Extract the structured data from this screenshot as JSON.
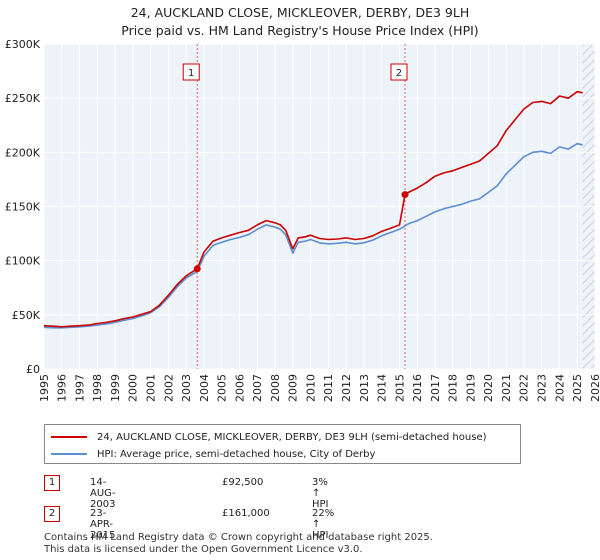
{
  "chart_data": {
    "type": "line",
    "title": "24, AUCKLAND CLOSE, MICKLEOVER, DERBY, DE3 9LH",
    "subtitle": "Price paid vs. HM Land Registry's House Price Index (HPI)",
    "xlim": [
      1995,
      2026
    ],
    "ylim": [
      0,
      300000
    ],
    "x_ticks": [
      1995,
      1996,
      1997,
      1998,
      1999,
      2000,
      2001,
      2002,
      2003,
      2004,
      2005,
      2006,
      2007,
      2008,
      2009,
      2010,
      2011,
      2012,
      2013,
      2014,
      2015,
      2016,
      2017,
      2018,
      2019,
      2020,
      2021,
      2022,
      2023,
      2024,
      2025,
      2026
    ],
    "x_tick_labels": [
      "1995",
      "1996",
      "1997",
      "1998",
      "1999",
      "2000",
      "2001",
      "2002",
      "2003",
      "2004",
      "2005",
      "2006",
      "2007",
      "2008",
      "2009",
      "2010",
      "2011",
      "2012",
      "2013",
      "2014",
      "2015",
      "2016",
      "2017",
      "2018",
      "2019",
      "2020",
      "2021",
      "2022",
      "2023",
      "2024",
      "2025",
      "2026"
    ],
    "y_ticks": [
      0,
      50000,
      100000,
      150000,
      200000,
      250000,
      300000
    ],
    "y_tick_labels": [
      "£0",
      "£50K",
      "£100K",
      "£150K",
      "£200K",
      "£250K",
      "£300K"
    ],
    "series": [
      {
        "name": "24, AUCKLAND CLOSE, MICKLEOVER, DERBY, DE3 9LH (semi-detached house)",
        "color": "#cc0000",
        "x": [
          1995,
          1995.5,
          1996,
          1996.5,
          1997,
          1997.5,
          1998,
          1998.5,
          1999,
          1999.5,
          2000,
          2000.5,
          2001,
          2001.5,
          2002,
          2002.5,
          2003,
          2003.62,
          2004,
          2004.5,
          2005,
          2005.5,
          2006,
          2006.5,
          2007,
          2007.5,
          2008,
          2008.3,
          2008.6,
          2009,
          2009.3,
          2009.7,
          2010,
          2010.5,
          2011,
          2011.5,
          2012,
          2012.5,
          2013,
          2013.5,
          2014,
          2014.5,
          2015,
          2015.31,
          2015.5,
          2016,
          2016.5,
          2017,
          2017.5,
          2018,
          2018.5,
          2019,
          2019.5,
          2020,
          2020.5,
          2021,
          2021.5,
          2022,
          2022.5,
          2023,
          2023.5,
          2024,
          2024.5,
          2025,
          2025.3
        ],
        "y": [
          40000,
          39500,
          39000,
          39500,
          40000,
          40500,
          42000,
          43000,
          44500,
          46500,
          48000,
          50500,
          53000,
          59000,
          68000,
          78000,
          86000,
          92500,
          108000,
          118000,
          121000,
          123500,
          126000,
          128000,
          133000,
          137000,
          135000,
          133000,
          128000,
          111000,
          121000,
          122000,
          123500,
          120500,
          119500,
          120000,
          121000,
          119500,
          120500,
          123000,
          127000,
          130000,
          133000,
          161000,
          163000,
          167000,
          172000,
          178000,
          181000,
          183000,
          186000,
          189000,
          192000,
          199000,
          206000,
          220000,
          230000,
          240000,
          246000,
          247000,
          245000,
          252000,
          250000,
          256000,
          255000
        ]
      },
      {
        "name": "HPI: Average price, semi-detached house, City of Derby",
        "color": "#5b8fd1",
        "x": [
          1995,
          1995.5,
          1996,
          1996.5,
          1997,
          1997.5,
          1998,
          1998.5,
          1999,
          1999.5,
          2000,
          2000.5,
          2001,
          2001.5,
          2002,
          2002.5,
          2003,
          2003.62,
          2004,
          2004.5,
          2005,
          2005.5,
          2006,
          2006.5,
          2007,
          2007.5,
          2008,
          2008.3,
          2008.6,
          2009,
          2009.3,
          2009.7,
          2010,
          2010.5,
          2011,
          2011.5,
          2012,
          2012.5,
          2013,
          2013.5,
          2014,
          2014.5,
          2015,
          2015.31,
          2015.5,
          2016,
          2016.5,
          2017,
          2017.5,
          2018,
          2018.5,
          2019,
          2019.5,
          2020,
          2020.5,
          2021,
          2021.5,
          2022,
          2022.5,
          2023,
          2023.5,
          2024,
          2024.5,
          2025,
          2025.3
        ],
        "y": [
          38500,
          38000,
          38000,
          38500,
          39000,
          39500,
          40500,
          41500,
          43000,
          45000,
          46500,
          49000,
          52000,
          57500,
          66000,
          76000,
          84000,
          90000,
          104000,
          114000,
          117000,
          119500,
          121500,
          124000,
          129000,
          133000,
          131000,
          129000,
          124000,
          107000,
          117000,
          118000,
          119500,
          116500,
          115500,
          116000,
          117000,
          115500,
          116500,
          119000,
          123000,
          126000,
          129000,
          132000,
          134000,
          137000,
          141000,
          145000,
          148000,
          150000,
          152000,
          155000,
          157000,
          163000,
          169000,
          180000,
          188000,
          196000,
          200000,
          201000,
          199000,
          205000,
          203000,
          208000,
          207000
        ]
      }
    ],
    "sale_markers": [
      {
        "label": "1",
        "x": 2003.62,
        "y": 92500
      },
      {
        "label": "2",
        "x": 2015.31,
        "y": 161000
      }
    ]
  },
  "legend": {
    "items": [
      {
        "label": "24, AUCKLAND CLOSE, MICKLEOVER, DERBY, DE3 9LH (semi-detached house)",
        "color": "#cc0000"
      },
      {
        "label": "HPI: Average price, semi-detached house, City of Derby",
        "color": "#5b8fd1"
      }
    ]
  },
  "transactions": [
    {
      "num": "1",
      "date": "14-AUG-2003",
      "price": "£92,500",
      "hpi": "3% ↑ HPI"
    },
    {
      "num": "2",
      "date": "23-APR-2015",
      "price": "£161,000",
      "hpi": "22% ↑ HPI"
    }
  ],
  "footer": {
    "line1": "Contains HM Land Registry data © Crown copyright and database right 2025.",
    "line2": "This data is licensed under the Open Government Licence v3.0."
  },
  "colors": {
    "price_line": "#cc0000",
    "hpi_line": "#5b8fd1",
    "plot_bg": "#eef3fa",
    "grid": "#ffffff",
    "future_hatch": "#d5dbe4"
  }
}
